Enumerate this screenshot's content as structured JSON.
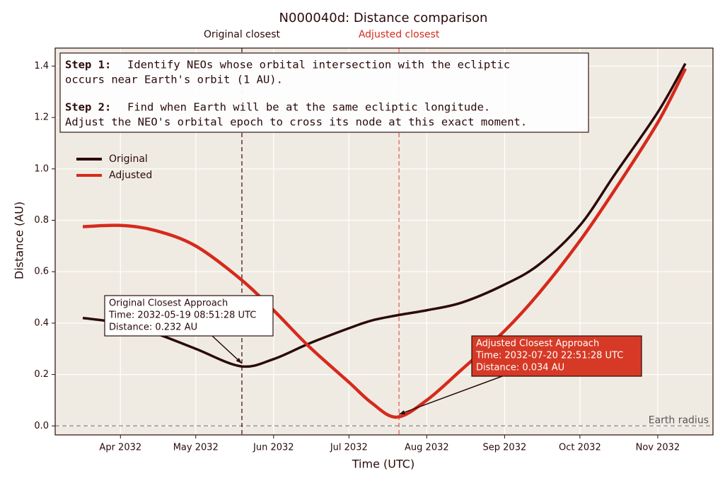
{
  "chart_data": {
    "type": "line",
    "title": "N000040d: Distance comparison",
    "xlabel": "Time (UTC)",
    "ylabel": "Distance (AU)",
    "x": [
      "2032-03-17",
      "2032-04-01",
      "2032-04-15",
      "2032-05-01",
      "2032-05-19",
      "2032-06-01",
      "2032-06-15",
      "2032-07-01",
      "2032-07-10",
      "2032-07-20",
      "2032-08-01",
      "2032-08-15",
      "2032-09-01",
      "2032-09-15",
      "2032-10-01",
      "2032-10-15",
      "2032-11-01",
      "2032-11-12"
    ],
    "series": [
      {
        "name": "Original",
        "color": "#2a0a0a",
        "values": [
          0.42,
          0.4,
          0.36,
          0.3,
          0.232,
          0.26,
          0.32,
          0.38,
          0.41,
          0.43,
          0.45,
          0.48,
          0.55,
          0.63,
          0.78,
          0.98,
          1.22,
          1.41
        ]
      },
      {
        "name": "Adjusted",
        "color": "#d62a1c",
        "values": [
          0.775,
          0.78,
          0.76,
          0.7,
          0.57,
          0.45,
          0.31,
          0.17,
          0.09,
          0.034,
          0.1,
          0.22,
          0.37,
          0.52,
          0.72,
          0.92,
          1.18,
          1.39
        ]
      }
    ],
    "xlim": [
      "2032-03-06",
      "2032-11-23"
    ],
    "xticks": [
      {
        "value": "2032-04-01",
        "label": "Apr 2032"
      },
      {
        "value": "2032-05-01",
        "label": "May 2032"
      },
      {
        "value": "2032-06-01",
        "label": "Jun 2032"
      },
      {
        "value": "2032-07-01",
        "label": "Jul 2032"
      },
      {
        "value": "2032-08-01",
        "label": "Aug 2032"
      },
      {
        "value": "2032-09-01",
        "label": "Sep 2032"
      },
      {
        "value": "2032-10-01",
        "label": "Oct 2032"
      },
      {
        "value": "2032-11-01",
        "label": "Nov 2032"
      }
    ],
    "ylim": [
      -0.035,
      1.47
    ],
    "yticks": [
      {
        "value": 0,
        "label": "0.0"
      },
      0.2,
      0.4,
      0.6,
      0.8,
      {
        "value": 1,
        "label": "1.0"
      },
      1.2,
      1.4
    ],
    "grid": true,
    "legend": "upper left",
    "markers": [
      {
        "label": "Original closest",
        "x": "2032-05-19T08:51:28",
        "color": "#2a0a0a"
      },
      {
        "label": "Adjusted closest",
        "x": "2032-07-20T22:51:28",
        "color": "#d62a1c"
      }
    ],
    "hline": {
      "label": "Earth radius",
      "y": 0
    },
    "annotations": [
      {
        "lines": [
          "Original Closest Approach",
          "Time: 2032-05-19 08:51:28 UTC",
          "Distance: 0.232 AU"
        ],
        "x": "2032-05-19T08:51:28",
        "y": 0.232
      },
      {
        "lines": [
          "Adjusted Closest Approach",
          "Time: 2032-07-20 22:51:28 UTC",
          "Distance: 0.034 AU"
        ],
        "x": "2032-07-20T22:51:28",
        "y": 0.034
      }
    ],
    "steps": [
      {
        "label": "Step 1:",
        "lines": [
          "Identify NEOs whose orbital intersection with the ecliptic",
          "occurs near Earth's orbit (1 AU)."
        ]
      },
      {
        "label": "Step 2:",
        "lines": [
          "Find when Earth will be at the same ecliptic longitude.",
          "Adjust the NEO's orbital epoch to cross its node at this exact moment."
        ]
      }
    ]
  }
}
